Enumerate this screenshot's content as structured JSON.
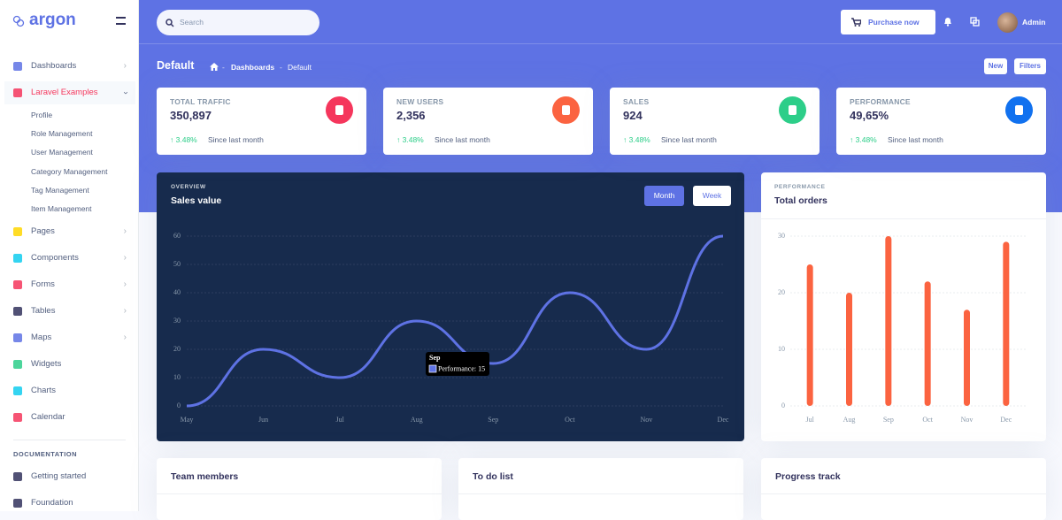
{
  "sidebar": {
    "brand": "argon",
    "nav": [
      "Dashboards",
      "Laravel Examples"
    ],
    "subnav": [
      "Profile",
      "Role Management",
      "User Management",
      "Category Management",
      "Tag Management",
      "Item Management"
    ],
    "nav2": [
      "Pages",
      "Components",
      "Forms",
      "Tables",
      "Maps",
      "Widgets",
      "Charts",
      "Calendar"
    ],
    "section": "DOCUMENTATION",
    "docs": [
      "Getting started",
      "Foundation"
    ]
  },
  "topbar": {
    "search_placeholder": "Search",
    "purchase": "Purchase now",
    "user": "Admin"
  },
  "header": {
    "title": "Default",
    "breadcrumb": [
      "Dashboards",
      "Default"
    ],
    "actions": [
      "New",
      "Filters"
    ]
  },
  "stats": [
    {
      "label": "TOTAL TRAFFIC",
      "value": "350,897",
      "change": "3.48%",
      "note": "Since last month"
    },
    {
      "label": "NEW USERS",
      "value": "2,356",
      "change": "3.48%",
      "note": "Since last month"
    },
    {
      "label": "SALES",
      "value": "924",
      "change": "3.48%",
      "note": "Since last month"
    },
    {
      "label": "PERFORMANCE",
      "value": "49,65%",
      "change": "3.48%",
      "note": "Since last month"
    }
  ],
  "chart_data": [
    {
      "type": "line",
      "overline": "OVERVIEW",
      "title": "Sales value",
      "toggle": [
        "Month",
        "Week"
      ],
      "categories": [
        "May",
        "Jun",
        "Jul",
        "Aug",
        "Sep",
        "Oct",
        "Nov",
        "Dec"
      ],
      "values": [
        0,
        20,
        10,
        30,
        15,
        40,
        20,
        60
      ],
      "color": "#5e72e4",
      "ylim": [
        0,
        60
      ],
      "yticks": [
        0,
        10,
        20,
        30,
        40,
        50,
        60
      ],
      "grid": true,
      "tooltip": {
        "title": "Sep",
        "body": "Performance: 15"
      }
    },
    {
      "type": "bar",
      "overline": "PERFORMANCE",
      "title": "Total orders",
      "categories": [
        "Jul",
        "Aug",
        "Sep",
        "Oct",
        "Nov",
        "Dec"
      ],
      "values": [
        25,
        20,
        30,
        22,
        17,
        29
      ],
      "color": "#fb6340",
      "ylim": [
        0,
        30
      ],
      "yticks": [
        0,
        10,
        20,
        30
      ],
      "grid": true
    }
  ],
  "panels": [
    "Team members",
    "To do list",
    "Progress track"
  ]
}
